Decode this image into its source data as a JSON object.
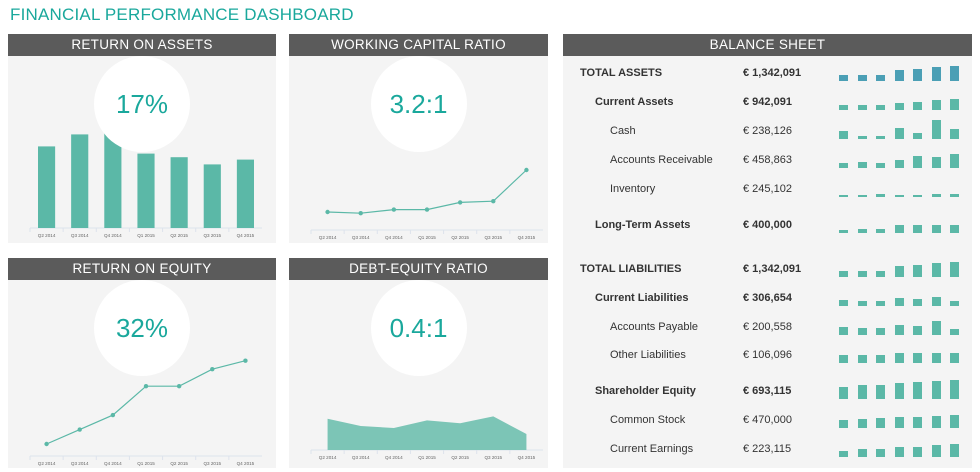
{
  "title": "FINANCIAL PERFORMANCE DASHBOARD",
  "colors": {
    "accent": "#1aa89c",
    "bar": "#5bb8a7",
    "blue": "#4b9fb5",
    "header": "#5b5b5b"
  },
  "quarters": [
    "Q2 2014",
    "Q3 2014",
    "Q4 2014",
    "Q1 2015",
    "Q2 2015",
    "Q3 2015",
    "Q4 2015"
  ],
  "roa": {
    "title": "RETURN ON ASSETS",
    "kpi": "17%",
    "values": [
      68,
      78,
      82,
      62,
      59,
      53,
      57
    ]
  },
  "wcr": {
    "title": "WORKING CAPITAL RATIO",
    "kpi": "3.2:1",
    "values": [
      0.1,
      0.08,
      0.14,
      0.14,
      0.26,
      0.28,
      0.8
    ]
  },
  "roe": {
    "title": "RETURN ON EQUITY",
    "kpi": "32%",
    "values": [
      0,
      0.17,
      0.34,
      0.68,
      0.68,
      0.88,
      0.98
    ]
  },
  "der": {
    "title": "DEBT-EQUITY RATIO",
    "kpi": "0.4:1",
    "values": [
      0.78,
      0.6,
      0.55,
      0.74,
      0.67,
      0.84,
      0.4
    ]
  },
  "balance": {
    "title": "BALANCE SHEET",
    "rows": [
      {
        "label": "TOTAL ASSETS",
        "value": "€  1,342,091",
        "level": 0,
        "bars": [
          7,
          7,
          7,
          13,
          14,
          17,
          18
        ],
        "blue": true
      },
      {
        "label": "Current Assets",
        "value": "€  942,091",
        "level": 1,
        "bars": [
          6,
          6,
          6,
          8,
          9,
          12,
          13
        ]
      },
      {
        "label": "Cash",
        "value": "€  238,126",
        "level": 2,
        "bars": [
          9,
          3,
          4,
          13,
          7,
          22,
          12
        ]
      },
      {
        "label": "Accounts Receivable",
        "value": "€  458,863",
        "level": 2,
        "bars": [
          6,
          7,
          6,
          9,
          14,
          13,
          17
        ]
      },
      {
        "label": "Inventory",
        "value": "€  245,102",
        "level": 2,
        "bars": [
          2,
          2,
          3,
          2,
          2,
          3,
          4
        ]
      },
      {
        "label": "Long-Term Assets",
        "value": "€  400,000",
        "level": 1,
        "bars": [
          3,
          5,
          5,
          10,
          10,
          10,
          10
        ]
      },
      {
        "label": "TOTAL LIABILITIES",
        "value": "€  1,342,091",
        "level": 0,
        "bars": [
          7,
          7,
          7,
          13,
          14,
          17,
          18
        ]
      },
      {
        "label": "Current Liabilities",
        "value": "€  306,654",
        "level": 1,
        "bars": [
          7,
          6,
          6,
          9,
          8,
          11,
          6
        ]
      },
      {
        "label": "Accounts Payable",
        "value": "€  200,558",
        "level": 2,
        "bars": [
          9,
          8,
          8,
          12,
          11,
          16,
          7
        ]
      },
      {
        "label": "Other Liabilities",
        "value": "€  106,096",
        "level": 2,
        "bars": [
          9,
          9,
          9,
          12,
          12,
          12,
          12
        ]
      },
      {
        "label": "Shareholder Equity",
        "value": "€  693,115",
        "level": 1,
        "bars": [
          14,
          16,
          17,
          19,
          20,
          21,
          22
        ]
      },
      {
        "label": "Common Stock",
        "value": "€  470,000",
        "level": 2,
        "bars": [
          10,
          11,
          12,
          13,
          13,
          14,
          15
        ]
      },
      {
        "label": "Current Earnings",
        "value": "€  223,115",
        "level": 2,
        "bars": [
          7,
          9,
          10,
          12,
          12,
          14,
          15
        ]
      }
    ]
  }
}
